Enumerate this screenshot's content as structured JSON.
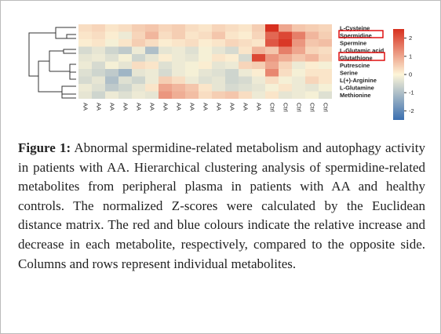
{
  "chart_data": {
    "type": "heatmap",
    "rows": [
      "L-Cysteine",
      "Spermidine",
      "Spermine",
      "L-Glutamic acid",
      "Glutathione",
      "Putrescine",
      "Serine",
      "L(+)-Arginine",
      "L-Glutamine",
      "Methionine"
    ],
    "columns": [
      "AA",
      "AA",
      "AA",
      "AA",
      "AA",
      "AA",
      "AA",
      "AA",
      "AA",
      "AA",
      "AA",
      "AA",
      "AA",
      "AA",
      "Ctrl",
      "Ctrl",
      "Ctrl",
      "Ctrl",
      "Ctrl"
    ],
    "values": [
      [
        0.3,
        0.4,
        0.2,
        0.3,
        0.5,
        0.6,
        0.4,
        0.5,
        0.3,
        0.2,
        0.4,
        0.3,
        0.2,
        0.5,
        2.5,
        1.0,
        0.6,
        0.5,
        0.4
      ],
      [
        0.2,
        0.3,
        0.1,
        -0.2,
        0.4,
        0.8,
        0.3,
        0.5,
        0.2,
        0.3,
        0.6,
        0.2,
        0.1,
        0.4,
        1.8,
        2.2,
        1.5,
        0.8,
        0.5
      ],
      [
        0.1,
        0.2,
        -0.1,
        0.2,
        0.5,
        0.3,
        0.1,
        0.2,
        0.3,
        0.1,
        0.2,
        0.4,
        0.3,
        0.2,
        2.0,
        2.4,
        1.2,
        0.6,
        0.7
      ],
      [
        -0.5,
        -0.3,
        -0.6,
        -0.8,
        -0.2,
        -1.0,
        -0.3,
        -0.2,
        -0.4,
        -0.1,
        -0.3,
        -0.5,
        0.2,
        0.8,
        0.6,
        1.5,
        1.0,
        0.4,
        0.3
      ],
      [
        -0.3,
        -0.2,
        -0.4,
        -0.1,
        -0.6,
        -0.3,
        0.1,
        -0.2,
        -0.3,
        -0.1,
        0.2,
        0.1,
        -0.5,
        2.2,
        1.2,
        0.9,
        0.6,
        0.8,
        0.4
      ],
      [
        -0.2,
        -0.5,
        -0.1,
        -0.3,
        0.3,
        0.2,
        -0.4,
        -0.2,
        -0.1,
        0.1,
        -0.3,
        -0.2,
        0.4,
        0.5,
        1.0,
        0.4,
        -0.2,
        0.1,
        -0.1
      ],
      [
        -0.4,
        -0.6,
        -0.8,
        -1.2,
        -0.3,
        -0.2,
        -0.5,
        -0.2,
        -0.1,
        -0.3,
        -0.4,
        -0.6,
        -0.2,
        0.1,
        1.4,
        0.3,
        -0.1,
        0.2,
        0.2
      ],
      [
        -0.5,
        -0.3,
        -1.0,
        -0.4,
        -0.6,
        -0.2,
        0.5,
        0.3,
        -0.2,
        -0.4,
        -0.3,
        -0.6,
        -0.5,
        -0.2,
        0.3,
        -0.1,
        -0.2,
        0.4,
        0.2
      ],
      [
        -0.2,
        -0.4,
        -0.8,
        -0.6,
        -0.3,
        0.2,
        1.0,
        0.8,
        0.6,
        0.2,
        -0.3,
        -0.5,
        -0.4,
        -0.3,
        -0.1,
        0.2,
        -0.2,
        -0.3,
        -0.1
      ],
      [
        -0.3,
        -0.6,
        -0.2,
        -0.4,
        -0.2,
        -0.3,
        1.2,
        0.9,
        0.7,
        0.3,
        0.5,
        0.6,
        0.3,
        -0.2,
        0.2,
        -0.3,
        -0.2,
        -0.1,
        -0.4
      ]
    ],
    "clim": [
      -2.5,
      2.5
    ],
    "colorbar_ticks": [
      2,
      1,
      0,
      -1,
      -2
    ]
  },
  "caption": {
    "label": "Figure 1:",
    "text": "Abnormal spermidine-related metabolism and autophagy activity in patients with AA. Hierarchical clustering analysis of spermidine-related metabolites from peripheral plasma in patients with AA and healthy controls. The normalized Z-scores were calculated by the Euclidean distance matrix. The red and blue colours indicate the relative increase and decrease in each metabolite, respectively, compared to the opposite side. Columns and rows represent individual metabolites."
  }
}
